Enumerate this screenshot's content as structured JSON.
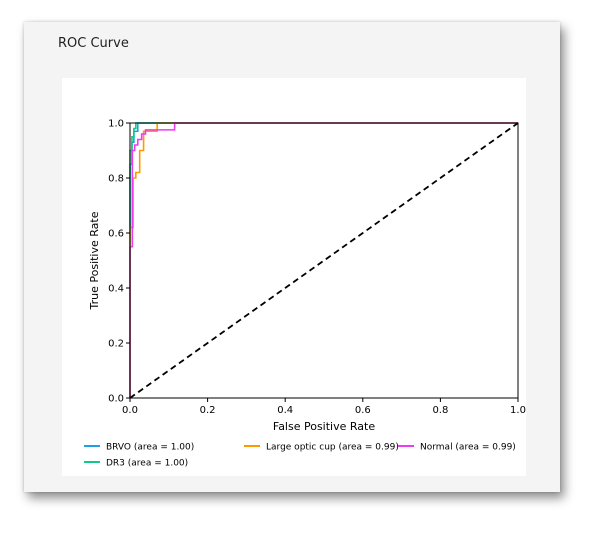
{
  "panel": {
    "title": "ROC Curve"
  },
  "colors": {
    "card_bg": "#f4f4f4",
    "plot_bg": "#ffffff",
    "BRVO": "#1f9ee8",
    "DR3": "#13c785",
    "Large optic cup": "#ff9900",
    "Normal": "#ee3bf0",
    "diagonal": "#000000"
  },
  "chart_data": {
    "type": "line",
    "xlabel": "False Positive Rate",
    "ylabel": "True Positive Rate",
    "xlim": [
      0.0,
      1.0
    ],
    "ylim": [
      0.0,
      1.0
    ],
    "xticks": [
      "0.0",
      "0.2",
      "0.4",
      "0.6",
      "0.8",
      "1.0"
    ],
    "yticks": [
      "0.0",
      "0.2",
      "0.4",
      "0.6",
      "0.8",
      "1.0"
    ],
    "grid": false,
    "legend_position": "bottom",
    "series": [
      {
        "name": "BRVO (area = 1.00)",
        "color": "#1f9ee8",
        "x": [
          0.0,
          0.0,
          0.005,
          0.005,
          0.01,
          0.01,
          0.02,
          0.02,
          1.0
        ],
        "y": [
          0.0,
          0.85,
          0.85,
          0.93,
          0.93,
          0.97,
          0.97,
          1.0,
          1.0
        ]
      },
      {
        "name": "DR3 (area = 1.00)",
        "color": "#13c785",
        "x": [
          0.0,
          0.0,
          0.005,
          0.005,
          0.01,
          0.01,
          0.015,
          0.015,
          1.0
        ],
        "y": [
          0.0,
          0.9,
          0.9,
          0.95,
          0.95,
          0.98,
          0.98,
          1.0,
          1.0
        ]
      },
      {
        "name": "Large optic cup (area = 0.99)",
        "color": "#ff9900",
        "x": [
          0.0,
          0.0,
          0.008,
          0.008,
          0.015,
          0.015,
          0.025,
          0.025,
          0.035,
          0.035,
          0.07,
          0.07,
          1.0
        ],
        "y": [
          0.0,
          0.62,
          0.62,
          0.8,
          0.8,
          0.82,
          0.82,
          0.9,
          0.9,
          0.97,
          0.97,
          1.0,
          1.0
        ]
      },
      {
        "name": "Normal (area = 0.99)",
        "color": "#ee3bf0",
        "x": [
          0.0,
          0.0,
          0.006,
          0.006,
          0.012,
          0.012,
          0.02,
          0.02,
          0.03,
          0.03,
          0.04,
          0.04,
          0.115,
          0.115,
          1.0
        ],
        "y": [
          0.0,
          0.55,
          0.55,
          0.9,
          0.9,
          0.92,
          0.92,
          0.94,
          0.94,
          0.96,
          0.96,
          0.975,
          0.975,
          1.0,
          1.0
        ]
      }
    ],
    "reference_line": {
      "x": [
        0.0,
        1.0
      ],
      "y": [
        0.0,
        1.0
      ],
      "style": "dashed",
      "color": "#000000"
    }
  }
}
